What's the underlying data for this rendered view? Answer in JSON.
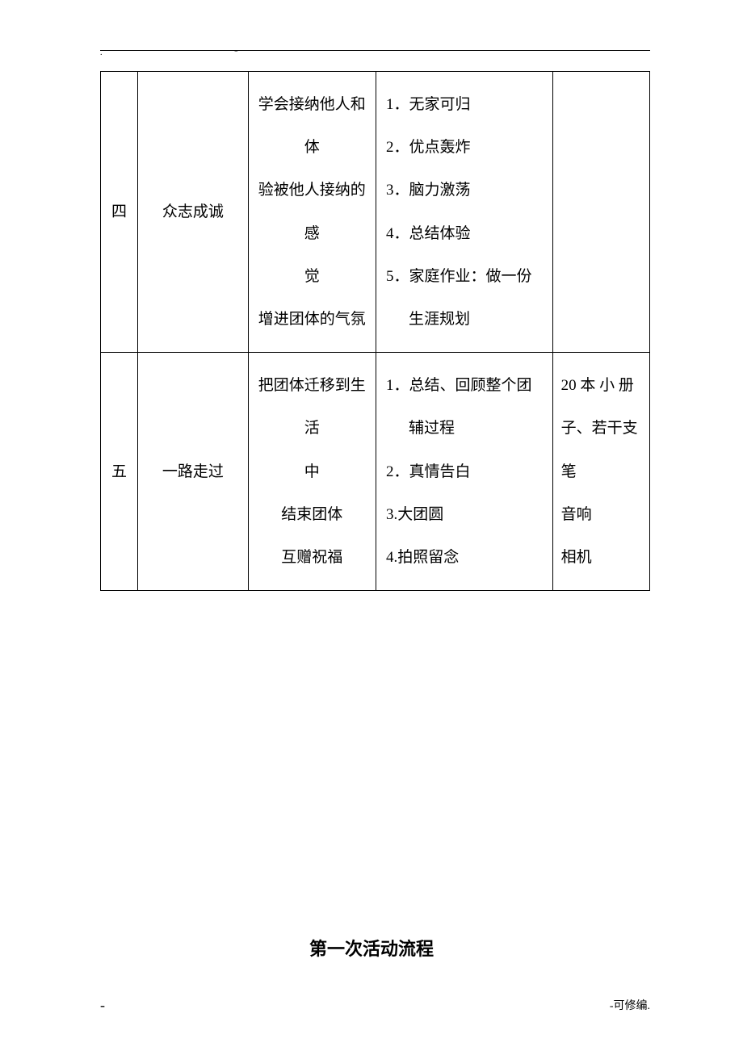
{
  "header": {
    "dot": ".",
    "dash": "-"
  },
  "table": {
    "columns": {
      "num_width": 46,
      "name_width": 136,
      "purpose_width": 158,
      "activity_width": 218,
      "material_width": 120
    },
    "border_color": "#000000",
    "font_size": 19,
    "rows": [
      {
        "num": "四",
        "name": "众志成诚",
        "purpose_lines": [
          "学会接纳他人和体",
          "验被他人接纳的感",
          "觉",
          "增进团体的气氛"
        ],
        "activities": [
          "1．无家可归",
          "2．优点轰炸",
          "3．脑力激荡",
          "4．总结体验",
          "5．家庭作业：做一份"
        ],
        "activity_sub": "生涯规划",
        "materials": ""
      },
      {
        "num": "五",
        "name": "一路走过",
        "purpose_lines": [
          "把团体迁移到生活",
          "中",
          "结束团体",
          "互赠祝福"
        ],
        "activities": [
          "1．总结、回顾整个团"
        ],
        "activity_sub": "辅过程",
        "activities_after": [
          "2．真情告白",
          "3.大团圆",
          "4.拍照留念"
        ],
        "materials_lines": [
          "20 本 小 册",
          "子、若干支",
          "笔",
          "音响",
          "相机"
        ]
      }
    ]
  },
  "heading": "第一次活动流程",
  "footer": {
    "left": "-",
    "right": "-可修编."
  },
  "colors": {
    "background": "#ffffff",
    "text": "#000000",
    "border": "#000000"
  }
}
